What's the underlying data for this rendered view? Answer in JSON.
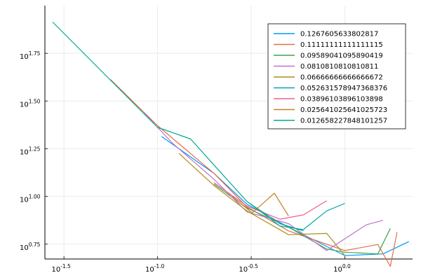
{
  "chart_data": {
    "type": "line",
    "title": "",
    "xlabel": "",
    "ylabel": "",
    "x_scale": "log10",
    "y_scale": "log10",
    "xlim": [
      0.025,
      2.3
    ],
    "ylim": [
      4.7,
      100
    ],
    "grid": true,
    "legend_position": "top-right",
    "x_ticks": [
      {
        "value": 0.0316,
        "base": "10",
        "exp": "-1.5"
      },
      {
        "value": 0.1,
        "base": "10",
        "exp": "-1.0"
      },
      {
        "value": 0.3162,
        "base": "10",
        "exp": "-0.5"
      },
      {
        "value": 1.0,
        "base": "10",
        "exp": "0.0"
      }
    ],
    "y_ticks": [
      {
        "value": 5.623,
        "base": "10",
        "exp": "0.75"
      },
      {
        "value": 10.0,
        "base": "10",
        "exp": "1.00"
      },
      {
        "value": 17.78,
        "base": "10",
        "exp": "1.25"
      },
      {
        "value": 31.62,
        "base": "10",
        "exp": "1.50"
      },
      {
        "value": 56.23,
        "base": "10",
        "exp": "1.75"
      }
    ],
    "series": [
      {
        "name": "0.1267605633802817",
        "color": "#009AFA",
        "x": [
          0.105,
          0.2,
          0.3,
          0.5,
          1.0,
          1.6,
          2.2
        ],
        "y": [
          20.6,
          13.2,
          9.1,
          6.9,
          4.9,
          5.0,
          5.8
        ]
      },
      {
        "name": "0.11111111111111115",
        "color": "#E36F47",
        "x": [
          0.056,
          0.1,
          0.2,
          0.3,
          0.5,
          1.0,
          1.5,
          1.75,
          1.9
        ],
        "y": [
          41.0,
          23.5,
          13.2,
          8.8,
          6.6,
          5.2,
          5.6,
          4.3,
          6.5
        ]
      },
      {
        "name": "0.09589041095890419",
        "color": "#3EA44E",
        "x": [
          0.2,
          0.3,
          0.5,
          0.8,
          1.0,
          1.5,
          1.75
        ],
        "y": [
          11.6,
          8.7,
          6.9,
          5.3,
          5.1,
          5.0,
          6.8
        ]
      },
      {
        "name": "0.0810810810810811",
        "color": "#C271D2",
        "x": [
          0.085,
          0.12,
          0.2,
          0.3,
          0.5,
          0.8,
          1.3,
          1.6
        ],
        "y": [
          27.3,
          19.0,
          12.3,
          8.3,
          7.2,
          5.2,
          7.1,
          7.5
        ]
      },
      {
        "name": "0.06666666666666672",
        "color": "#AC8D18",
        "x": [
          0.13,
          0.2,
          0.3,
          0.5,
          0.8,
          1.0
        ],
        "y": [
          16.8,
          11.4,
          8.4,
          6.3,
          6.4,
          4.9
        ]
      },
      {
        "name": "0.052631578947368376",
        "color": "#00A9AD",
        "x": [
          0.31,
          0.45,
          0.6,
          0.8,
          1.0
        ],
        "y": [
          9.2,
          7.0,
          6.7,
          8.4,
          9.2
        ]
      },
      {
        "name": "0.03896103896103898",
        "color": "#ED5E93",
        "x": [
          0.2,
          0.3,
          0.45,
          0.6,
          0.8
        ],
        "y": [
          11.8,
          8.9,
          7.6,
          8.0,
          9.5
        ]
      },
      {
        "name": "0.025641025641025723",
        "color": "#C68125",
        "x": [
          0.25,
          0.32,
          0.42,
          0.5
        ],
        "y": [
          10.0,
          8.2,
          10.4,
          7.9
        ]
      },
      {
        "name": "0.012658227848101257",
        "color": "#00A98D",
        "x": [
          0.0275,
          0.1,
          0.15,
          0.2,
          0.3,
          0.45,
          0.6
        ],
        "y": [
          82.0,
          23.0,
          20.0,
          14.6,
          9.4,
          7.2,
          6.6
        ]
      }
    ]
  }
}
